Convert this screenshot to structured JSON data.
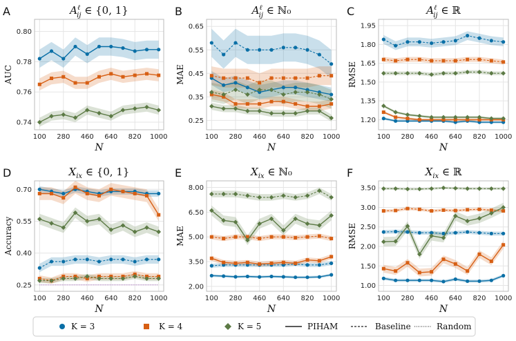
{
  "colors": {
    "K3": "#0a6fa6",
    "K4": "#d75f14",
    "K5": "#5c7a45",
    "random": "#9b59b6",
    "grid": "#e5e5e5",
    "frame": "#bbbbbb"
  },
  "legend": {
    "k3": "K = 3",
    "k4": "K = 4",
    "k5": "K = 5",
    "piham": "PIHAM",
    "baseline": "Baseline",
    "random": "Random"
  },
  "chart_data": [
    {
      "type": "line",
      "panel_label": "A",
      "title": "A^ℓ_ij ∈ {0,1}",
      "title_main": "A",
      "title_sup": "ℓ",
      "title_sub": "ij",
      "title_rest": " ∈ {0, 1}",
      "xlabel": "N",
      "ylabel": "AUC",
      "x": [
        100,
        190,
        280,
        370,
        460,
        550,
        640,
        730,
        820,
        910,
        1000
      ],
      "xticks": [
        100,
        280,
        460,
        640,
        820,
        1000
      ],
      "ylim": [
        0.735,
        0.808
      ],
      "yticks": [
        0.74,
        0.76,
        0.78,
        0.8
      ],
      "yfmt": 2,
      "random": null,
      "series": [
        {
          "name": "K = 3 PIHAM",
          "k": "K3",
          "style": "solid",
          "values": [
            0.782,
            0.787,
            0.782,
            0.79,
            0.785,
            0.79,
            0.79,
            0.789,
            0.787,
            0.788,
            0.788
          ],
          "band": 0.006
        },
        {
          "name": "K = 4 PIHAM",
          "k": "K4",
          "style": "solid",
          "values": [
            0.765,
            0.769,
            0.77,
            0.766,
            0.766,
            0.77,
            0.772,
            0.77,
            0.771,
            0.772,
            0.771
          ],
          "band": 0.004
        },
        {
          "name": "K = 5 PIHAM",
          "k": "K5",
          "style": "solid",
          "values": [
            0.74,
            0.744,
            0.745,
            0.743,
            0.748,
            0.746,
            0.744,
            0.748,
            0.749,
            0.75,
            0.748
          ],
          "band": 0.003
        }
      ]
    },
    {
      "type": "line",
      "panel_label": "B",
      "title": "A^ℓ_ij ∈ ℕ0",
      "title_main": "A",
      "title_sup": "ℓ",
      "title_sub": "ij",
      "title_rest": " ∈ ℕ₀",
      "xlabel": "N",
      "ylabel": "MAE",
      "x": [
        100,
        190,
        280,
        370,
        460,
        550,
        640,
        730,
        820,
        910,
        1000
      ],
      "xticks": [
        100,
        280,
        460,
        640,
        820,
        1000
      ],
      "ylim": [
        0.21,
        0.68
      ],
      "yticks": [
        0.25,
        0.35,
        0.45,
        0.55,
        0.65
      ],
      "yfmt": 2,
      "random": null,
      "series": [
        {
          "name": "K = 3 PIHAM",
          "k": "K3",
          "style": "solid",
          "values": [
            0.43,
            0.4,
            0.41,
            0.39,
            0.37,
            0.38,
            0.39,
            0.39,
            0.38,
            0.37,
            0.36
          ],
          "band": 0.03
        },
        {
          "name": "K = 3 Baseline",
          "k": "K3",
          "style": "dashed",
          "values": [
            0.58,
            0.53,
            0.58,
            0.55,
            0.55,
            0.55,
            0.56,
            0.56,
            0.55,
            0.53,
            0.49
          ],
          "band": 0.06
        },
        {
          "name": "K = 4 PIHAM",
          "k": "K4",
          "style": "solid",
          "values": [
            0.36,
            0.35,
            0.32,
            0.32,
            0.32,
            0.33,
            0.33,
            0.32,
            0.31,
            0.31,
            0.32
          ],
          "band": 0.02
        },
        {
          "name": "K = 4 Baseline",
          "k": "K4",
          "style": "dashed",
          "values": [
            0.44,
            0.43,
            0.43,
            0.43,
            0.41,
            0.43,
            0.43,
            0.43,
            0.43,
            0.44,
            0.44
          ],
          "band": 0.04
        },
        {
          "name": "K = 5 PIHAM",
          "k": "K5",
          "style": "solid",
          "values": [
            0.31,
            0.3,
            0.3,
            0.29,
            0.29,
            0.28,
            0.28,
            0.28,
            0.29,
            0.29,
            0.26
          ],
          "band": 0.015
        },
        {
          "name": "K = 5 Baseline",
          "k": "K5",
          "style": "dashed",
          "values": [
            0.37,
            0.36,
            0.38,
            0.36,
            0.38,
            0.38,
            0.36,
            0.37,
            0.37,
            0.36,
            0.34
          ],
          "band": 0.04
        }
      ]
    },
    {
      "type": "line",
      "panel_label": "C",
      "title": "A^ℓ_ij ∈ ℝ",
      "title_main": "A",
      "title_sup": "ℓ",
      "title_sub": "ij",
      "title_rest": " ∈ ℝ",
      "xlabel": "N",
      "ylabel": "RMSE",
      "x": [
        100,
        190,
        280,
        370,
        460,
        550,
        640,
        730,
        820,
        910,
        1000
      ],
      "xticks": [
        100,
        280,
        460,
        640,
        820,
        1000
      ],
      "ylim": [
        1.12,
        2.0
      ],
      "yticks": [
        1.2,
        1.35,
        1.5,
        1.65,
        1.8,
        1.95
      ],
      "yfmt": 2,
      "random": null,
      "series": [
        {
          "name": "K = 3 PIHAM",
          "k": "K3",
          "style": "solid",
          "values": [
            1.21,
            1.19,
            1.19,
            1.19,
            1.19,
            1.19,
            1.18,
            1.19,
            1.18,
            1.18,
            1.18
          ],
          "band": 0.01
        },
        {
          "name": "K = 3 Baseline",
          "k": "K3",
          "style": "dashed",
          "values": [
            1.84,
            1.79,
            1.82,
            1.82,
            1.81,
            1.82,
            1.83,
            1.87,
            1.85,
            1.83,
            1.82
          ],
          "band": 0.035
        },
        {
          "name": "K = 4 PIHAM",
          "k": "K4",
          "style": "solid",
          "values": [
            1.26,
            1.22,
            1.21,
            1.2,
            1.2,
            1.2,
            1.2,
            1.2,
            1.2,
            1.2,
            1.2
          ],
          "band": 0.01
        },
        {
          "name": "K = 4 Baseline",
          "k": "K4",
          "style": "dashed",
          "values": [
            1.68,
            1.67,
            1.68,
            1.68,
            1.67,
            1.67,
            1.67,
            1.68,
            1.68,
            1.67,
            1.66
          ],
          "band": 0.02
        },
        {
          "name": "K = 5 PIHAM",
          "k": "K5",
          "style": "solid",
          "values": [
            1.31,
            1.26,
            1.24,
            1.23,
            1.22,
            1.22,
            1.22,
            1.22,
            1.22,
            1.21,
            1.21
          ],
          "band": 0.01
        },
        {
          "name": "K = 5 Baseline",
          "k": "K5",
          "style": "dashed",
          "values": [
            1.57,
            1.57,
            1.57,
            1.57,
            1.56,
            1.57,
            1.57,
            1.58,
            1.58,
            1.57,
            1.57
          ],
          "band": 0.015
        }
      ]
    },
    {
      "type": "line",
      "panel_label": "D",
      "title": "X_ix ∈ {0,1}",
      "title_main": "X",
      "title_sup": "",
      "title_sub": "ix",
      "title_rest": " ∈ {0, 1}",
      "xlabel": "N",
      "ylabel": "Accuracy",
      "x": [
        100,
        190,
        280,
        370,
        460,
        550,
        640,
        730,
        820,
        910,
        1000
      ],
      "xticks": [
        100,
        280,
        460,
        640,
        820,
        1000
      ],
      "ylim": [
        0.22,
        0.74
      ],
      "yticks": [
        0.25,
        0.4,
        0.55,
        0.7
      ],
      "yfmt": 2,
      "random": 0.25,
      "series": [
        {
          "name": "K = 3 PIHAM",
          "k": "K3",
          "style": "solid",
          "values": [
            0.7,
            0.69,
            0.68,
            0.7,
            0.69,
            0.68,
            0.69,
            0.69,
            0.69,
            0.68,
            0.68
          ],
          "band": 0.015
        },
        {
          "name": "K = 3 Baseline",
          "k": "K3",
          "style": "dashed",
          "values": [
            0.33,
            0.36,
            0.36,
            0.37,
            0.37,
            0.36,
            0.37,
            0.37,
            0.36,
            0.37,
            0.37
          ],
          "band": 0.02
        },
        {
          "name": "K = 4 PIHAM",
          "k": "K4",
          "style": "solid",
          "values": [
            0.68,
            0.68,
            0.66,
            0.71,
            0.68,
            0.67,
            0.7,
            0.69,
            0.68,
            0.67,
            0.58
          ],
          "band": 0.03
        },
        {
          "name": "K = 4 Baseline",
          "k": "K4",
          "style": "dashed",
          "values": [
            0.28,
            0.27,
            0.29,
            0.29,
            0.28,
            0.29,
            0.29,
            0.29,
            0.3,
            0.29,
            0.29
          ],
          "band": 0.015
        },
        {
          "name": "K = 5 PIHAM",
          "k": "K5",
          "style": "solid",
          "values": [
            0.56,
            0.54,
            0.52,
            0.59,
            0.55,
            0.56,
            0.51,
            0.53,
            0.5,
            0.52,
            0.5
          ],
          "band": 0.025
        },
        {
          "name": "K = 5 Baseline",
          "k": "K5",
          "style": "dashed",
          "values": [
            0.27,
            0.27,
            0.28,
            0.28,
            0.29,
            0.28,
            0.28,
            0.28,
            0.29,
            0.28,
            0.28
          ],
          "band": 0.012
        }
      ]
    },
    {
      "type": "line",
      "panel_label": "E",
      "title": "X_ix ∈ ℕ0",
      "title_main": "X",
      "title_sup": "",
      "title_sub": "ix",
      "title_rest": " ∈ ℕ₀",
      "xlabel": "N",
      "ylabel": "MAE",
      "x": [
        100,
        190,
        280,
        370,
        460,
        550,
        640,
        730,
        820,
        910,
        1000
      ],
      "xticks": [
        100,
        280,
        460,
        640,
        820,
        1000
      ],
      "ylim": [
        1.7,
        8.4
      ],
      "yticks": [
        2.0,
        3.5,
        5.0,
        6.5,
        8.0
      ],
      "yfmt": 2,
      "random": null,
      "series": [
        {
          "name": "K = 3 PIHAM",
          "k": "K3",
          "style": "solid",
          "values": [
            2.65,
            2.62,
            2.58,
            2.6,
            2.57,
            2.6,
            2.58,
            2.55,
            2.55,
            2.57,
            2.7
          ],
          "band": 0.08
        },
        {
          "name": "K = 3 Baseline",
          "k": "K3",
          "style": "dashed",
          "values": [
            3.25,
            3.3,
            3.3,
            3.3,
            3.3,
            3.3,
            3.3,
            3.35,
            3.3,
            3.3,
            3.4
          ],
          "band": 0.12
        },
        {
          "name": "K = 4 PIHAM",
          "k": "K4",
          "style": "solid",
          "values": [
            3.7,
            3.45,
            3.4,
            3.45,
            3.35,
            3.4,
            3.45,
            3.4,
            3.6,
            3.55,
            3.8
          ],
          "band": 0.15
        },
        {
          "name": "K = 4 Baseline",
          "k": "K4",
          "style": "dashed",
          "values": [
            5.0,
            4.9,
            5.0,
            5.0,
            4.9,
            5.0,
            5.0,
            4.95,
            5.0,
            5.05,
            4.9
          ],
          "band": 0.15
        },
        {
          "name": "K = 5 PIHAM",
          "k": "K5",
          "style": "solid",
          "values": [
            6.6,
            6.0,
            5.9,
            4.8,
            5.8,
            6.1,
            5.4,
            6.1,
            5.8,
            5.7,
            6.3
          ],
          "band": 0.3
        },
        {
          "name": "K = 5 Baseline",
          "k": "K5",
          "style": "dashed",
          "values": [
            7.6,
            7.6,
            7.6,
            7.5,
            7.4,
            7.4,
            7.5,
            7.4,
            7.5,
            7.8,
            7.4
          ],
          "band": 0.2
        }
      ]
    },
    {
      "type": "line",
      "panel_label": "F",
      "title": "X_ix ∈ ℝ",
      "title_main": "X",
      "title_sup": "",
      "title_sub": "ix",
      "title_rest": " ∈ ℝ",
      "xlabel": "N",
      "ylabel": "RMSE",
      "x": [
        100,
        190,
        280,
        370,
        460,
        550,
        640,
        730,
        820,
        910,
        1000
      ],
      "xticks": [
        100,
        280,
        460,
        640,
        820,
        1000
      ],
      "ylim": [
        0.85,
        3.68
      ],
      "yticks": [
        1.0,
        1.5,
        2.0,
        2.5,
        3.0,
        3.5
      ],
      "yfmt": 2,
      "random": null,
      "series": [
        {
          "name": "K = 3 PIHAM",
          "k": "K3",
          "style": "solid",
          "values": [
            1.18,
            1.13,
            1.13,
            1.13,
            1.13,
            1.1,
            1.16,
            1.11,
            1.11,
            1.13,
            1.25
          ],
          "band": 0.04
        },
        {
          "name": "K = 3 Baseline",
          "k": "K3",
          "style": "dashed",
          "values": [
            2.37,
            2.38,
            2.37,
            2.35,
            2.35,
            2.33,
            2.35,
            2.37,
            2.35,
            2.33,
            2.33
          ],
          "band": 0.05
        },
        {
          "name": "K = 4 PIHAM",
          "k": "K4",
          "style": "solid",
          "values": [
            1.43,
            1.37,
            1.58,
            1.33,
            1.35,
            1.67,
            1.55,
            1.37,
            1.8,
            1.62,
            2.04
          ],
          "band": 0.1
        },
        {
          "name": "K = 4 Baseline",
          "k": "K4",
          "style": "dashed",
          "values": [
            2.91,
            2.92,
            2.97,
            2.95,
            2.91,
            2.93,
            2.92,
            2.94,
            2.95,
            2.93,
            2.91
          ],
          "band": 0.04
        },
        {
          "name": "K = 5 PIHAM",
          "k": "K5",
          "style": "solid",
          "values": [
            2.12,
            2.13,
            2.52,
            1.8,
            2.27,
            2.22,
            2.78,
            2.65,
            2.72,
            2.85,
            3.0
          ],
          "band": 0.12
        },
        {
          "name": "K = 5 Baseline",
          "k": "K5",
          "style": "dashed",
          "values": [
            3.48,
            3.48,
            3.47,
            3.47,
            3.48,
            3.5,
            3.49,
            3.48,
            3.48,
            3.48,
            3.48
          ],
          "band": 0.03
        }
      ]
    }
  ]
}
